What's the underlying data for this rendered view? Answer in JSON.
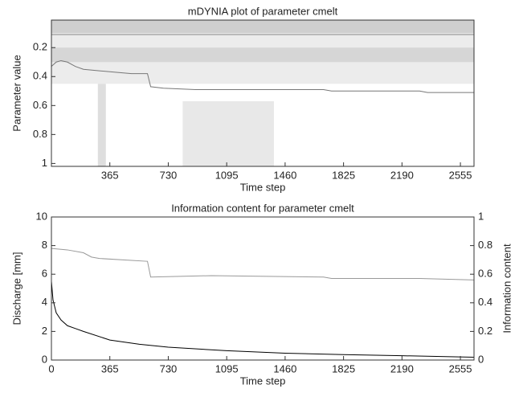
{
  "chart_data": [
    {
      "type": "line",
      "title": "mDYNIA plot of parameter cmelt",
      "xlabel": "Time step",
      "ylabel": "Parameter value",
      "xlim": [
        0,
        2640
      ],
      "ylim": [
        0.01,
        1.02
      ],
      "y_reversed": true,
      "xticks": [
        365,
        730,
        1095,
        1460,
        1825,
        2190,
        2555
      ],
      "yticks": [
        0.2,
        0.4,
        0.6,
        0.8,
        1
      ],
      "shading": [
        {
          "x": [
            0,
            2640
          ],
          "y": [
            0.01,
            0.45
          ],
          "color": "#ececec"
        },
        {
          "x": [
            0,
            2640
          ],
          "y": [
            0.01,
            0.1
          ],
          "color": "#cfcfcf"
        },
        {
          "x": [
            0,
            2640
          ],
          "y": [
            0.2,
            0.3
          ],
          "color": "#d6d6d6"
        },
        {
          "x": [
            290,
            340
          ],
          "y": [
            0.45,
            1.02
          ],
          "color": "#dedede"
        },
        {
          "x": [
            820,
            1390
          ],
          "y": [
            0.57,
            1.02
          ],
          "color": "#e8e8e8"
        }
      ],
      "series": [
        {
          "color": "#888888",
          "x": [
            0,
            2640
          ],
          "values": [
            0.11,
            0.11
          ]
        },
        {
          "color": "#777777",
          "x": [
            0,
            30,
            60,
            100,
            150,
            200,
            300,
            400,
            500,
            600,
            620,
            700,
            900,
            1100,
            1300,
            1500,
            1700,
            1750,
            2000,
            2300,
            2350,
            2640
          ],
          "values": [
            0.33,
            0.3,
            0.29,
            0.3,
            0.33,
            0.35,
            0.36,
            0.37,
            0.38,
            0.38,
            0.47,
            0.48,
            0.49,
            0.49,
            0.49,
            0.49,
            0.49,
            0.5,
            0.5,
            0.5,
            0.51,
            0.51
          ]
        }
      ]
    },
    {
      "type": "line",
      "title": "Information content for parameter cmelt",
      "xlabel": "Time step",
      "ylabel": "Discharge [mm]",
      "y2label": "Information content",
      "xlim": [
        0,
        2640
      ],
      "ylim": [
        0,
        10
      ],
      "y2lim": [
        0,
        1
      ],
      "xticks": [
        0,
        365,
        730,
        1095,
        1460,
        1825,
        2190,
        2555
      ],
      "yticks": [
        0,
        2,
        4,
        6,
        8,
        10
      ],
      "y2ticks": [
        0,
        0.2,
        0.4,
        0.6,
        0.8,
        1
      ],
      "series": [
        {
          "color": "#000000",
          "x": [
            0,
            10,
            30,
            60,
            100,
            150,
            200,
            365,
            550,
            730,
            1095,
            1460,
            1825,
            2190,
            2640
          ],
          "values": [
            5.5,
            4.2,
            3.3,
            2.8,
            2.4,
            2.2,
            2.0,
            1.4,
            1.1,
            0.9,
            0.65,
            0.48,
            0.38,
            0.3,
            0.2
          ]
        },
        {
          "color": "#999999",
          "axis": "y2",
          "x": [
            0,
            100,
            200,
            250,
            300,
            600,
            620,
            1000,
            1700,
            1750,
            2300,
            2640
          ],
          "values": [
            0.78,
            0.77,
            0.75,
            0.72,
            0.71,
            0.69,
            0.58,
            0.59,
            0.58,
            0.57,
            0.57,
            0.56
          ]
        }
      ]
    }
  ]
}
